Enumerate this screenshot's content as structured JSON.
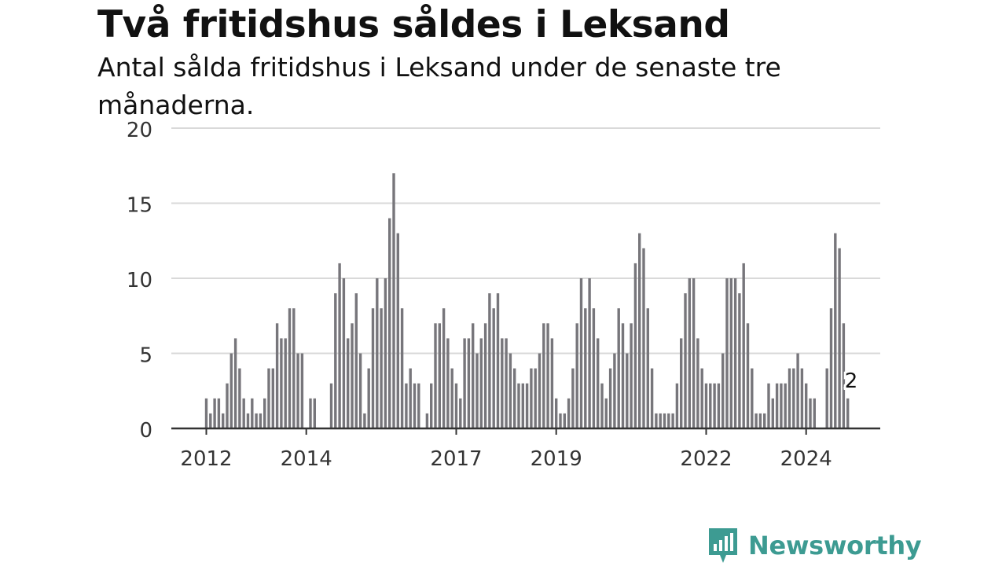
{
  "title": "Två fritidshus såldes i Leksand",
  "subtitle": "Antal sålda fritidshus i Leksand under de senaste tre månaderna.",
  "brand": {
    "name": "Newsworthy",
    "icon": "newsworthy-logo-icon",
    "color": "#3d9b92"
  },
  "colors": {
    "bar": "#77767b",
    "highlight": "#1a9e9e",
    "grid": "#d9d9d9",
    "axis": "#333333"
  },
  "chart_data": {
    "type": "bar",
    "title": "Två fritidshus såldes i Leksand",
    "subtitle": "Antal sålda fritidshus i Leksand under de senaste tre månaderna.",
    "xlabel": "",
    "ylabel": "",
    "ylim": [
      0,
      20
    ],
    "yticks": [
      0,
      5,
      10,
      15,
      20
    ],
    "grid": true,
    "x_ticks": [
      {
        "label": "2012",
        "index": 0
      },
      {
        "label": "2014",
        "index": 24
      },
      {
        "label": "2017",
        "index": 60
      },
      {
        "label": "2019",
        "index": 84
      },
      {
        "label": "2022",
        "index": 120
      },
      {
        "label": "2024",
        "index": 144
      }
    ],
    "values": [
      2,
      1,
      2,
      2,
      1,
      3,
      5,
      6,
      4,
      2,
      1,
      2,
      1,
      1,
      2,
      4,
      4,
      7,
      6,
      6,
      8,
      8,
      5,
      5,
      0,
      2,
      2,
      0,
      0,
      0,
      3,
      9,
      11,
      10,
      6,
      7,
      9,
      5,
      1,
      4,
      8,
      10,
      8,
      10,
      14,
      17,
      13,
      8,
      3,
      4,
      3,
      3,
      0,
      1,
      3,
      7,
      7,
      8,
      6,
      4,
      3,
      2,
      6,
      6,
      7,
      5,
      6,
      7,
      9,
      8,
      9,
      6,
      6,
      5,
      4,
      3,
      3,
      3,
      4,
      4,
      5,
      7,
      7,
      6,
      2,
      1,
      1,
      2,
      4,
      7,
      10,
      8,
      10,
      8,
      6,
      3,
      2,
      4,
      5,
      8,
      7,
      5,
      7,
      11,
      13,
      12,
      8,
      4,
      1,
      1,
      1,
      1,
      1,
      3,
      6,
      9,
      10,
      10,
      6,
      4,
      3,
      3,
      3,
      3,
      5,
      10,
      10,
      10,
      9,
      11,
      7,
      4,
      1,
      1,
      1,
      3,
      2,
      3,
      3,
      3,
      4,
      4,
      5,
      4,
      3,
      2,
      2,
      0,
      0,
      4,
      8,
      13,
      12,
      7,
      2
    ],
    "highlight": {
      "index": 155,
      "value": 2,
      "label": "2"
    }
  }
}
